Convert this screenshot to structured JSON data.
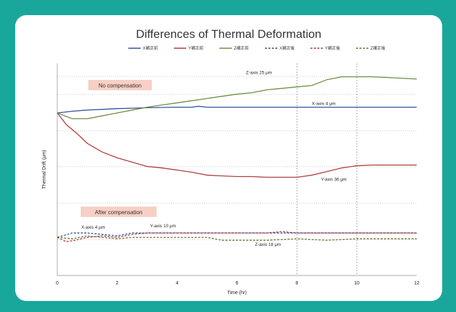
{
  "chart_data": {
    "type": "line",
    "title": "Differences of Thermal Deformation",
    "xlabel": "Time (hr)",
    "ylabel": "Thermal Drift (μm)",
    "xlim": [
      0,
      12
    ],
    "x_ticks": [
      "0",
      "2",
      "4",
      "6",
      "8",
      "10",
      "12"
    ],
    "x_guides": [
      8,
      10
    ],
    "legend_position": "top",
    "series": [
      {
        "name": "X補正前",
        "color": "#2e4f9a",
        "dash": false,
        "x": [
          0,
          0.5,
          1,
          1.5,
          2,
          2.5,
          3,
          3.5,
          4,
          4.5,
          4.7,
          5,
          6,
          7,
          8,
          9,
          10,
          11,
          12
        ],
        "y": [
          0,
          1.2,
          2,
          2.5,
          3,
          3.3,
          3.6,
          3.8,
          4,
          4,
          4.6,
          4,
          4,
          4,
          4,
          4,
          4,
          4,
          4
        ]
      },
      {
        "name": "Y補正前",
        "color": "#b03a3a",
        "dash": false,
        "x": [
          0,
          0.3,
          0.7,
          1,
          1.5,
          2,
          2.5,
          3,
          3.5,
          4,
          4.5,
          5,
          5.5,
          6,
          6.5,
          7,
          7.5,
          8,
          8.5,
          9,
          9.5,
          10,
          10.5,
          11,
          11.5,
          12
        ],
        "y": [
          0,
          -8,
          -15,
          -21,
          -27,
          -31,
          -34,
          -37,
          -38,
          -39.5,
          -41,
          -43,
          -43.5,
          -44,
          -44,
          -44.5,
          -44.5,
          -44.5,
          -43,
          -40.5,
          -38,
          -36.5,
          -36,
          -36,
          -36,
          -36
        ]
      },
      {
        "name": "Z補正前",
        "color": "#6e8b3d",
        "dash": false,
        "x": [
          0,
          0.5,
          1,
          1.5,
          2,
          2.5,
          3,
          3.5,
          4,
          4.5,
          5,
          5.5,
          6,
          6.5,
          7,
          7.5,
          8,
          8.5,
          9,
          9.5,
          10,
          10.5,
          11,
          11.5,
          12
        ],
        "y": [
          0,
          -4,
          -4,
          -2,
          0,
          2,
          4,
          5.5,
          7,
          8.5,
          10,
          11.5,
          13,
          14,
          16,
          17,
          18,
          19,
          23,
          25,
          25,
          25,
          24.5,
          24,
          23.5
        ]
      },
      {
        "name": "X補正後",
        "color": "#2e4f9a",
        "dash": true,
        "x": [
          0,
          0.5,
          1,
          1.5,
          2,
          2.5,
          3,
          4,
          5,
          6,
          7,
          8,
          9,
          10,
          11,
          12
        ],
        "y": [
          -86,
          -83,
          -83,
          -84,
          -85,
          -83,
          -83,
          -83,
          -83,
          -83,
          -83,
          -83,
          -83,
          -83,
          -83,
          -83
        ]
      },
      {
        "name": "Y補正後",
        "color": "#b03a3a",
        "dash": true,
        "x": [
          0,
          0.3,
          0.6,
          1,
          1.5,
          2,
          2.5,
          3,
          4,
          5,
          6,
          7,
          7.5,
          8,
          9,
          10,
          11,
          12
        ],
        "y": [
          -86,
          -89,
          -88,
          -86,
          -85,
          -86,
          -84,
          -83,
          -83,
          -83,
          -83,
          -83,
          -82,
          -83,
          -83,
          -83,
          -83,
          -83
        ]
      },
      {
        "name": "Z補正後",
        "color": "#6e6e2a",
        "dash": true,
        "x": [
          0,
          0.5,
          1,
          1.5,
          2,
          2.5,
          3,
          4,
          5,
          5.5,
          6,
          7,
          8,
          9,
          10,
          11,
          12
        ],
        "y": [
          -86,
          -87,
          -85,
          -86,
          -87,
          -86,
          -86,
          -86,
          -86,
          -88,
          -88,
          -88,
          -87,
          -88,
          -87,
          -87,
          -87
        ]
      }
    ],
    "annotations": [
      {
        "text": "Z-axis 25 μm",
        "x": 6.3,
        "y": 27
      },
      {
        "text": "X-axis 4 μm",
        "x": 8.5,
        "y": 5.5
      },
      {
        "text": "Y-axis 36 μm",
        "x": 8.8,
        "y": -47
      },
      {
        "text": "X-axis 4 μm",
        "x": 0.8,
        "y": -80
      },
      {
        "text": "Y-axis 10 μm",
        "x": 3.1,
        "y": -79
      },
      {
        "text": "Z-axis 18 μm",
        "x": 6.6,
        "y": -92
      }
    ],
    "callouts": [
      "No compensation",
      "After compensation"
    ]
  }
}
